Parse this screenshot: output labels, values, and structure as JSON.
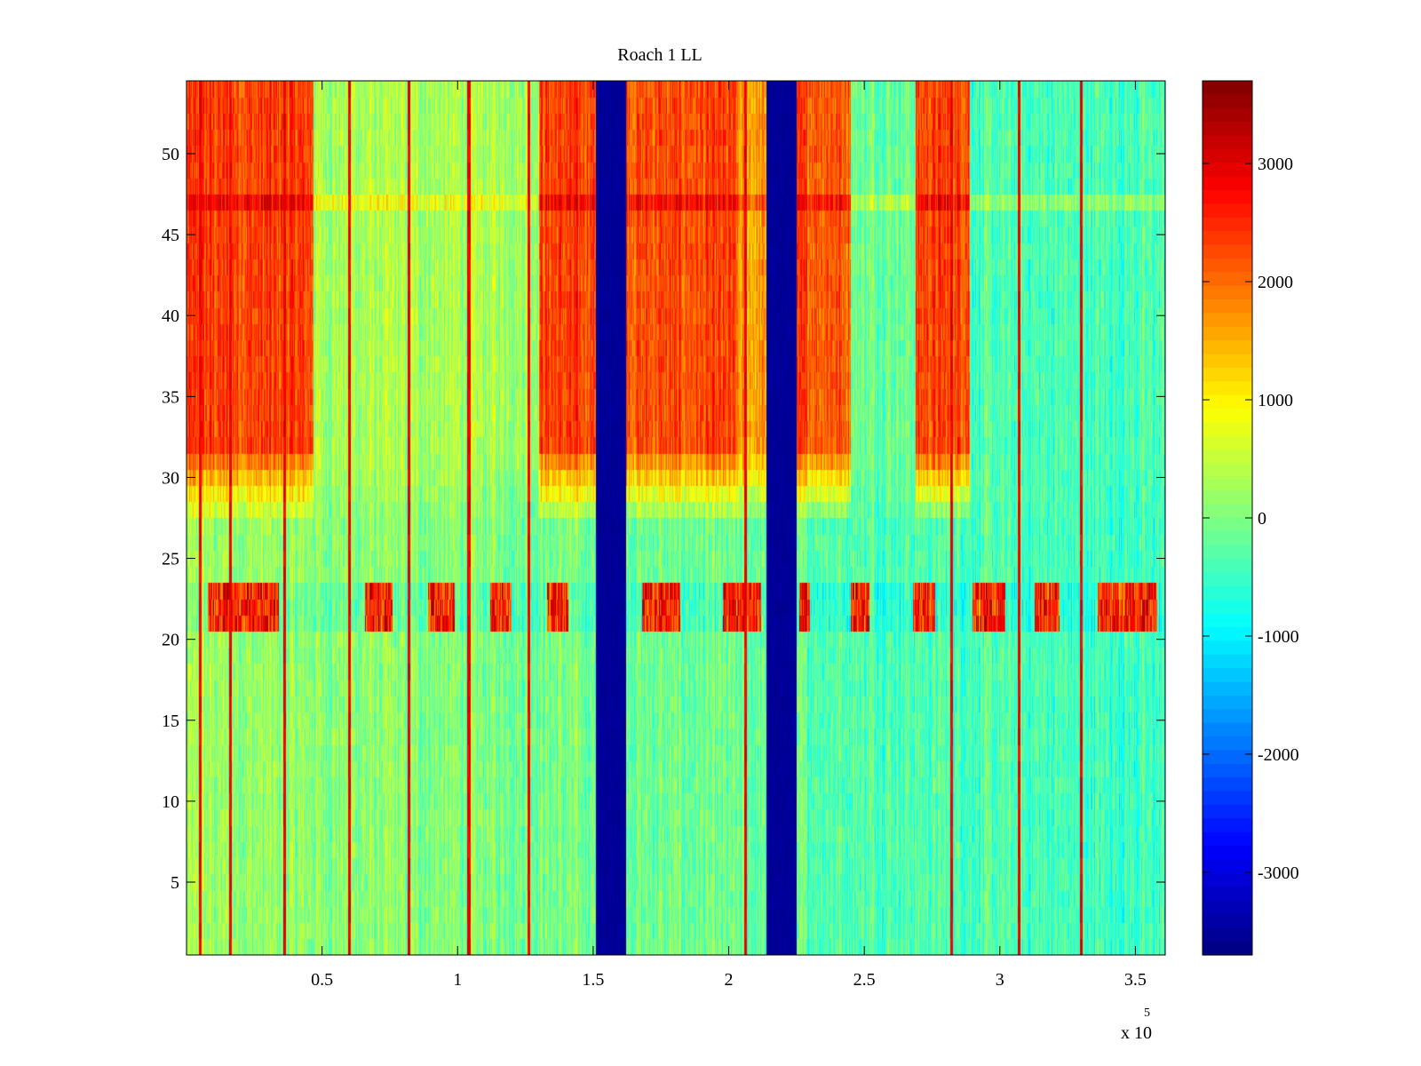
{
  "chart_data": {
    "type": "heatmap",
    "title": "Roach 1 LL",
    "xlabel": "",
    "ylabel": "",
    "xlim": [
      0,
      361000
    ],
    "ylim": [
      0.5,
      54.5
    ],
    "x_ticks": [
      50000,
      100000,
      150000,
      200000,
      250000,
      300000,
      350000
    ],
    "x_tick_labels": [
      "0.5",
      "1",
      "1.5",
      "2",
      "2.5",
      "3",
      "3.5"
    ],
    "x_exponent_label": "x 10",
    "x_exponent_power": "5",
    "y_ticks": [
      5,
      10,
      15,
      20,
      25,
      30,
      35,
      40,
      45,
      50
    ],
    "y_tick_labels": [
      "5",
      "10",
      "15",
      "20",
      "25",
      "30",
      "35",
      "40",
      "45",
      "50"
    ],
    "rows": 54,
    "colorbar": {
      "colormap": "jet",
      "clim": [
        -3700,
        3700
      ],
      "ticks": [
        -3000,
        -2000,
        -1000,
        0,
        1000,
        2000,
        3000
      ],
      "tick_labels": [
        "-3000",
        "-2000",
        "-1000",
        "0",
        "1000",
        "2000",
        "3000"
      ]
    },
    "column_bands": [
      {
        "x_start": 0,
        "x_end": 47000,
        "upper_level": 2300
      },
      {
        "x_start": 47000,
        "x_end": 130000,
        "upper_level": 300
      },
      {
        "x_start": 130000,
        "x_end": 151000,
        "upper_level": 2300
      },
      {
        "x_start": 151000,
        "x_end": 162000,
        "upper_level": -3600
      },
      {
        "x_start": 162000,
        "x_end": 203000,
        "upper_level": 2200
      },
      {
        "x_start": 203000,
        "x_end": 214000,
        "upper_level": 1600
      },
      {
        "x_start": 214000,
        "x_end": 225000,
        "upper_level": -3600
      },
      {
        "x_start": 225000,
        "x_end": 245000,
        "upper_level": 2200
      },
      {
        "x_start": 245000,
        "x_end": 269000,
        "upper_level": -100
      },
      {
        "x_start": 269000,
        "x_end": 289000,
        "upper_level": 2300
      },
      {
        "x_start": 289000,
        "x_end": 361000,
        "upper_level": -400
      }
    ],
    "hot_stripes_x": [
      5000,
      16000,
      36000,
      60000,
      82000,
      104000,
      126000,
      206000,
      282000,
      307000,
      330000
    ],
    "row_22_bursts": [
      {
        "x_start": 8000,
        "x_end": 34000
      },
      {
        "x_start": 66000,
        "x_end": 76000
      },
      {
        "x_start": 89000,
        "x_end": 99000
      },
      {
        "x_start": 112000,
        "x_end": 120000
      },
      {
        "x_start": 133000,
        "x_end": 141000
      },
      {
        "x_start": 168000,
        "x_end": 182000
      },
      {
        "x_start": 198000,
        "x_end": 212000
      },
      {
        "x_start": 226000,
        "x_end": 230000
      },
      {
        "x_start": 245000,
        "x_end": 252000
      },
      {
        "x_start": 268000,
        "x_end": 276000
      },
      {
        "x_start": 290000,
        "x_end": 302000
      },
      {
        "x_start": 313000,
        "x_end": 322000
      },
      {
        "x_start": 336000,
        "x_end": 358000
      }
    ]
  }
}
